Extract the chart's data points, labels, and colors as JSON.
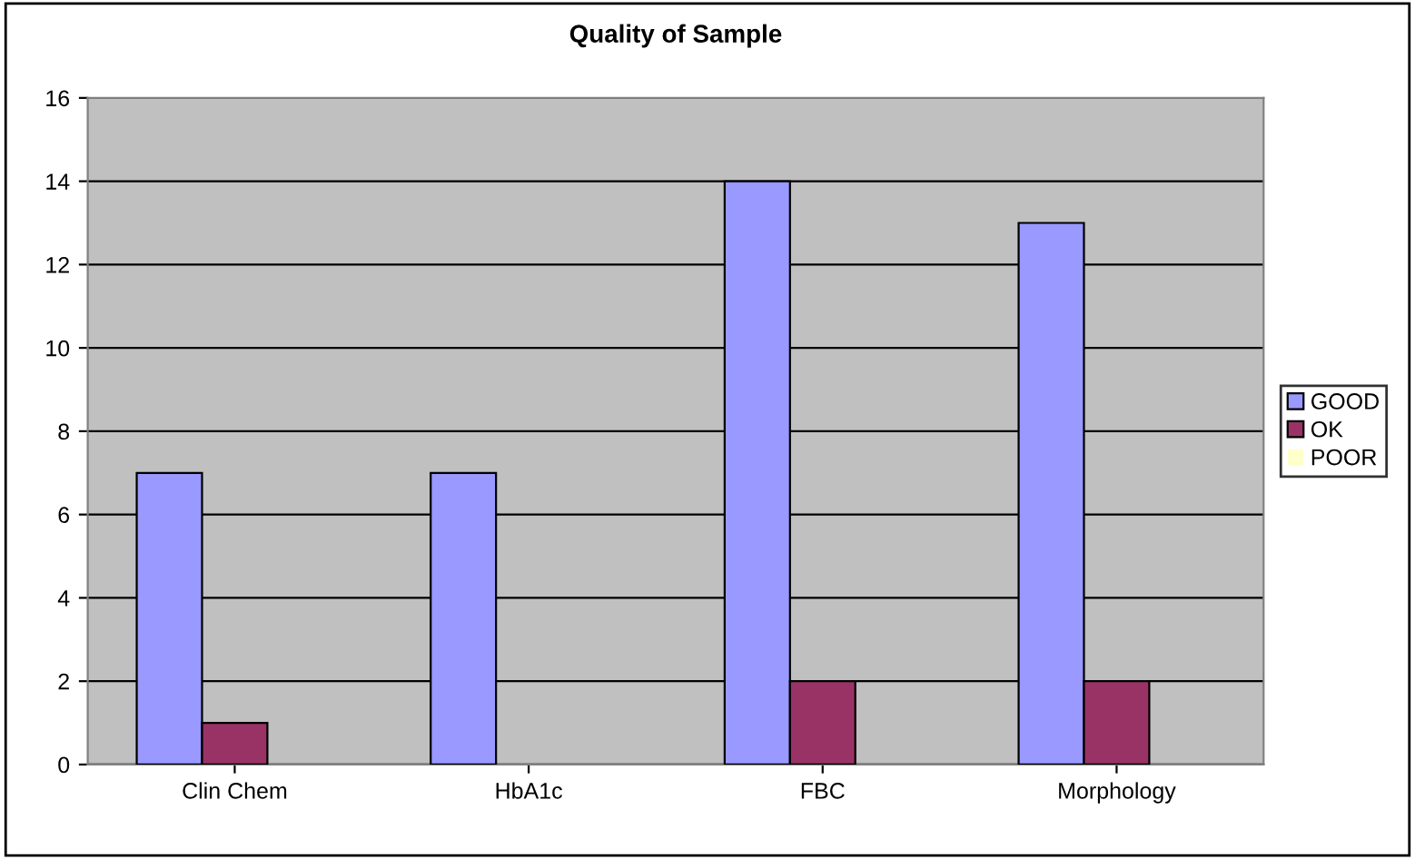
{
  "chart_data": {
    "type": "bar",
    "title": "Quality of Sample",
    "categories": [
      "Clin Chem",
      "HbA1c",
      "FBC",
      "Morphology"
    ],
    "series": [
      {
        "name": "GOOD",
        "color": "#9999ff",
        "values": [
          7,
          7,
          14,
          13
        ]
      },
      {
        "name": "OK",
        "color": "#993366",
        "values": [
          1,
          0,
          2,
          2
        ]
      },
      {
        "name": "POOR",
        "color": "#ffffcc",
        "values": [
          0,
          0,
          0,
          0
        ]
      }
    ],
    "ylim": [
      0,
      16
    ],
    "yticks": [
      0,
      2,
      4,
      6,
      8,
      10,
      12,
      14,
      16
    ],
    "grid": "y",
    "legend": "right"
  }
}
